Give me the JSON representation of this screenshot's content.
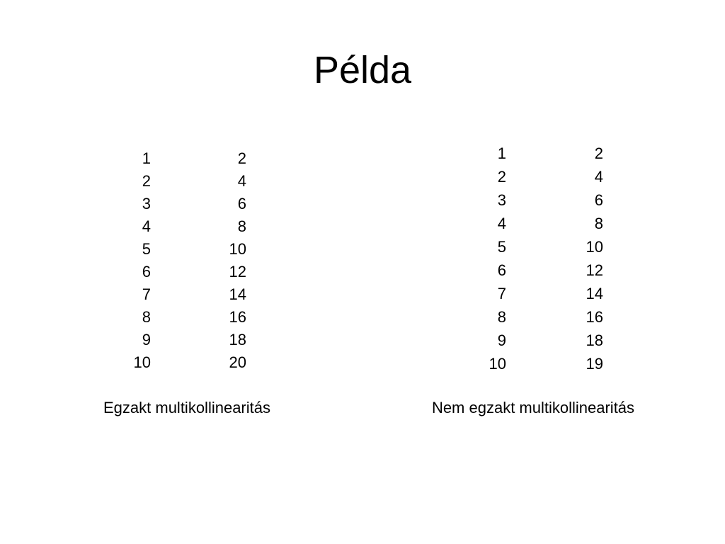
{
  "title": "Példa",
  "left_table": {
    "rows": [
      [
        "1",
        "2"
      ],
      [
        "2",
        "4"
      ],
      [
        "3",
        "6"
      ],
      [
        "4",
        "8"
      ],
      [
        "5",
        "10"
      ],
      [
        "6",
        "12"
      ],
      [
        "7",
        "14"
      ],
      [
        "8",
        "16"
      ],
      [
        "9",
        "18"
      ],
      [
        "10",
        "20"
      ]
    ],
    "caption": "Egzakt multikollinearitás"
  },
  "right_table": {
    "rows": [
      [
        "1",
        "2"
      ],
      [
        "2",
        "4"
      ],
      [
        "3",
        "6"
      ],
      [
        "4",
        "8"
      ],
      [
        "5",
        "10"
      ],
      [
        "6",
        "12"
      ],
      [
        "7",
        "14"
      ],
      [
        "8",
        "16"
      ],
      [
        "9",
        "18"
      ],
      [
        "10",
        "19"
      ]
    ],
    "caption": "Nem egzakt multikollinearitás"
  }
}
